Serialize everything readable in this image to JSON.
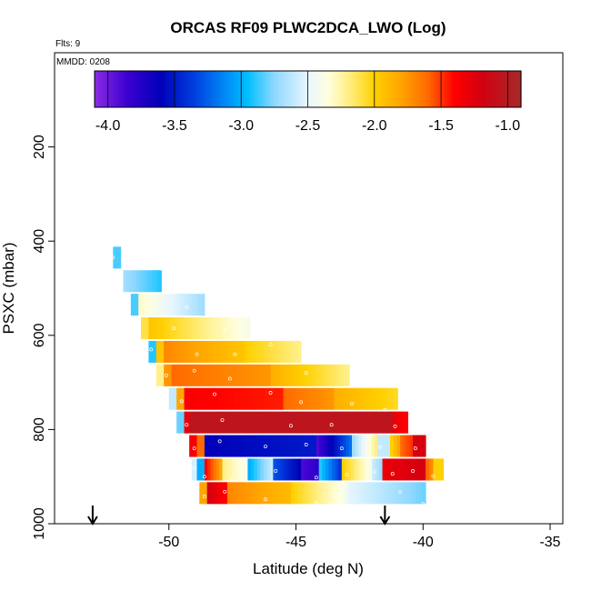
{
  "chart_data": {
    "type": "heatmap",
    "title": "ORCAS RF09 PLWC2DCA_LWO (Log)",
    "flights_label": "Flts: 9",
    "date_label": "MMDD: 0208",
    "xlabel": "Latitude (deg N)",
    "ylabel": "PSXC (mbar)",
    "xlim": [
      -54.5,
      -34.5
    ],
    "ylim": [
      1000,
      0
    ],
    "x_ticks": [
      -50,
      -45,
      -40,
      -35
    ],
    "x_tick_labels": [
      "-50",
      "-45",
      "-40",
      "-35"
    ],
    "y_ticks": [
      200,
      400,
      600,
      800,
      1000
    ],
    "y_tick_labels": [
      "200",
      "400",
      "600",
      "800",
      "1000"
    ],
    "grid": false,
    "colorbar": {
      "range": [
        -4.1,
        -0.9
      ],
      "ticks": [
        -4.0,
        -3.5,
        -3.0,
        -2.5,
        -2.0,
        -1.5,
        -1.0
      ],
      "tick_labels": [
        "-4.0",
        "-3.5",
        "-3.0",
        "-2.5",
        "-2.0",
        "-1.5",
        "-1.0"
      ],
      "stops": [
        {
          "v": -4.1,
          "c": "#8a2be2"
        },
        {
          "v": -3.85,
          "c": "#3b00d0"
        },
        {
          "v": -3.6,
          "c": "#0000b8"
        },
        {
          "v": -3.35,
          "c": "#0040e0"
        },
        {
          "v": -3.1,
          "c": "#0090f8"
        },
        {
          "v": -2.95,
          "c": "#00bfff"
        },
        {
          "v": -2.75,
          "c": "#8fd8ff"
        },
        {
          "v": -2.5,
          "c": "#e8f6ff"
        },
        {
          "v": -2.35,
          "c": "#ffffe0"
        },
        {
          "v": -2.2,
          "c": "#fff08a"
        },
        {
          "v": -2.0,
          "c": "#ffd000"
        },
        {
          "v": -1.8,
          "c": "#ffa500"
        },
        {
          "v": -1.6,
          "c": "#ff6a00"
        },
        {
          "v": -1.4,
          "c": "#ff0000"
        },
        {
          "v": -1.2,
          "c": "#d40010"
        },
        {
          "v": -0.9,
          "c": "#a52a2a"
        }
      ]
    },
    "arrows_x": [
      -53.0,
      -41.5
    ],
    "bins": [
      {
        "p": 435,
        "segs": [
          [
            -52.2,
            -51.9,
            -2.85,
            -2.85
          ]
        ]
      },
      {
        "p": 485,
        "segs": [
          [
            -51.8,
            -50.3,
            -2.7,
            -2.9
          ]
        ]
      },
      {
        "p": 535,
        "segs": [
          [
            -51.5,
            -51.2,
            -2.85,
            -2.85
          ],
          [
            -51.2,
            -48.6,
            -2.3,
            -2.7
          ]
        ]
      },
      {
        "p": 585,
        "segs": [
          [
            -51.1,
            -50.8,
            -2.1,
            -2.1
          ],
          [
            -50.8,
            -46.8,
            -1.95,
            -2.4
          ]
        ]
      },
      {
        "p": 635,
        "segs": [
          [
            -50.8,
            -50.5,
            -2.9,
            -2.9
          ],
          [
            -50.5,
            -50.2,
            -1.95,
            -1.95
          ],
          [
            -50.2,
            -47.0,
            -1.7,
            -1.95
          ],
          [
            -47.0,
            -44.8,
            -2.0,
            -2.2
          ]
        ]
      },
      {
        "p": 685,
        "segs": [
          [
            -50.5,
            -50.2,
            -2.2,
            -2.2
          ],
          [
            -50.2,
            -49.9,
            -1.75,
            -1.75
          ],
          [
            -49.9,
            -46.0,
            -1.6,
            -1.75
          ],
          [
            -46.0,
            -42.9,
            -1.85,
            -2.2
          ]
        ]
      },
      {
        "p": 735,
        "segs": [
          [
            -50.0,
            -49.7,
            -2.6,
            -2.6
          ],
          [
            -49.7,
            -49.4,
            -1.8,
            -1.8
          ],
          [
            -49.4,
            -45.5,
            -1.38,
            -1.45
          ],
          [
            -45.5,
            -43.5,
            -1.6,
            -1.75
          ],
          [
            -43.5,
            -41.0,
            -1.85,
            -2.05
          ]
        ]
      },
      {
        "p": 785,
        "segs": [
          [
            -49.7,
            -49.4,
            -2.8,
            -2.8
          ],
          [
            -49.4,
            -49.2,
            -1.3,
            -1.3
          ],
          [
            -49.2,
            -41.2,
            -1.05,
            -1.05
          ],
          [
            -41.2,
            -40.6,
            -1.3,
            -1.4
          ]
        ]
      },
      {
        "p": 835,
        "segs": [
          [
            -49.2,
            -48.9,
            -1.35,
            -1.35
          ],
          [
            -48.9,
            -48.6,
            -1.6,
            -1.6
          ],
          [
            -48.6,
            -44.2,
            -3.6,
            -3.5
          ],
          [
            -44.2,
            -42.8,
            -3.9,
            -3.2
          ],
          [
            -42.8,
            -41.8,
            -2.7,
            -2.2
          ],
          [
            -41.8,
            -41.3,
            -2.6,
            -2.6
          ],
          [
            -41.3,
            -40.9,
            -2.0,
            -1.8
          ],
          [
            -40.9,
            -40.4,
            -1.6,
            -1.5
          ],
          [
            -40.4,
            -39.9,
            -1.2,
            -1.2
          ]
        ]
      },
      {
        "p": 885,
        "segs": [
          [
            -49.1,
            -48.9,
            -2.55,
            -2.55
          ],
          [
            -48.9,
            -48.6,
            -3.0,
            -3.0
          ],
          [
            -48.6,
            -47.9,
            -1.4,
            -1.8
          ],
          [
            -47.9,
            -46.9,
            -2.2,
            -2.4
          ],
          [
            -46.9,
            -45.9,
            -3.0,
            -2.6
          ],
          [
            -45.9,
            -44.8,
            -3.3,
            -3.6
          ],
          [
            -44.8,
            -44.1,
            -3.9,
            -3.8
          ],
          [
            -44.1,
            -43.2,
            -2.9,
            -3.4
          ],
          [
            -43.2,
            -42.0,
            -2.0,
            -2.4
          ],
          [
            -42.0,
            -41.6,
            -2.6,
            -2.7
          ],
          [
            -41.6,
            -39.9,
            -1.3,
            -1.2
          ],
          [
            -39.9,
            -39.6,
            -1.6,
            -1.7
          ],
          [
            -39.6,
            -39.2,
            -2.0,
            -2.0
          ]
        ]
      },
      {
        "p": 935,
        "segs": [
          [
            -48.8,
            -48.5,
            -1.8,
            -1.8
          ],
          [
            -48.5,
            -47.7,
            -1.2,
            -1.4
          ],
          [
            -47.7,
            -45.2,
            -1.7,
            -1.9
          ],
          [
            -45.2,
            -43.0,
            -2.0,
            -2.4
          ],
          [
            -43.0,
            -39.9,
            -2.5,
            -2.8
          ]
        ]
      }
    ],
    "points": [
      [
        -52.2,
        435
      ],
      [
        -49.3,
        540
      ],
      [
        -48.0,
        545
      ],
      [
        -49.8,
        585
      ],
      [
        -47.8,
        590
      ],
      [
        -50.7,
        630
      ],
      [
        -48.9,
        640
      ],
      [
        -47.4,
        640
      ],
      [
        -46.0,
        620
      ],
      [
        -50.1,
        685
      ],
      [
        -49.0,
        675
      ],
      [
        -47.6,
        692
      ],
      [
        -44.6,
        680
      ],
      [
        -42.6,
        695
      ],
      [
        -49.5,
        740
      ],
      [
        -48.2,
        725
      ],
      [
        -46.0,
        722
      ],
      [
        -44.8,
        742
      ],
      [
        -42.8,
        745
      ],
      [
        -41.5,
        758
      ],
      [
        -49.3,
        790
      ],
      [
        -47.9,
        780
      ],
      [
        -45.2,
        792
      ],
      [
        -43.6,
        790
      ],
      [
        -41.1,
        793
      ],
      [
        -49.0,
        840
      ],
      [
        -48.0,
        825
      ],
      [
        -46.2,
        836
      ],
      [
        -44.6,
        832
      ],
      [
        -43.2,
        840
      ],
      [
        -41.7,
        837
      ],
      [
        -40.3,
        840
      ],
      [
        -49.0,
        882
      ],
      [
        -48.6,
        900
      ],
      [
        -47.5,
        906
      ],
      [
        -45.8,
        888
      ],
      [
        -44.2,
        902
      ],
      [
        -43.0,
        896
      ],
      [
        -41.9,
        890
      ],
      [
        -41.2,
        894
      ],
      [
        -40.4,
        888
      ],
      [
        -39.6,
        899
      ],
      [
        -48.6,
        942
      ],
      [
        -47.8,
        932
      ],
      [
        -46.2,
        948
      ],
      [
        -44.2,
        955
      ],
      [
        -43.5,
        942
      ],
      [
        -40.9,
        932
      ],
      [
        -40.0,
        958
      ]
    ]
  }
}
